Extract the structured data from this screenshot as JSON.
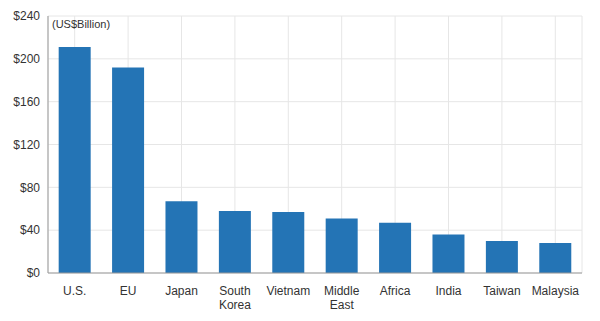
{
  "chart_data": {
    "type": "bar",
    "ylabel": "(US$Billion)",
    "categories": [
      "U.S.",
      "EU",
      "Japan",
      "South Korea",
      "Vietnam",
      "Middle East",
      "Africa",
      "India",
      "Taiwan",
      "Malaysia"
    ],
    "values": [
      211,
      192,
      67,
      58,
      57,
      51,
      47,
      36,
      30,
      28
    ],
    "color": "#2474b5",
    "ylim": [
      0,
      240
    ],
    "yticks": [
      {
        "value": 0,
        "label": "$0"
      },
      {
        "value": 40,
        "label": "$40"
      },
      {
        "value": 80,
        "label": "$80"
      },
      {
        "value": 120,
        "label": "$120"
      },
      {
        "value": 160,
        "label": "$160"
      },
      {
        "value": 200,
        "label": "$200"
      },
      {
        "value": 240,
        "label": "$240"
      }
    ],
    "grid": true
  }
}
